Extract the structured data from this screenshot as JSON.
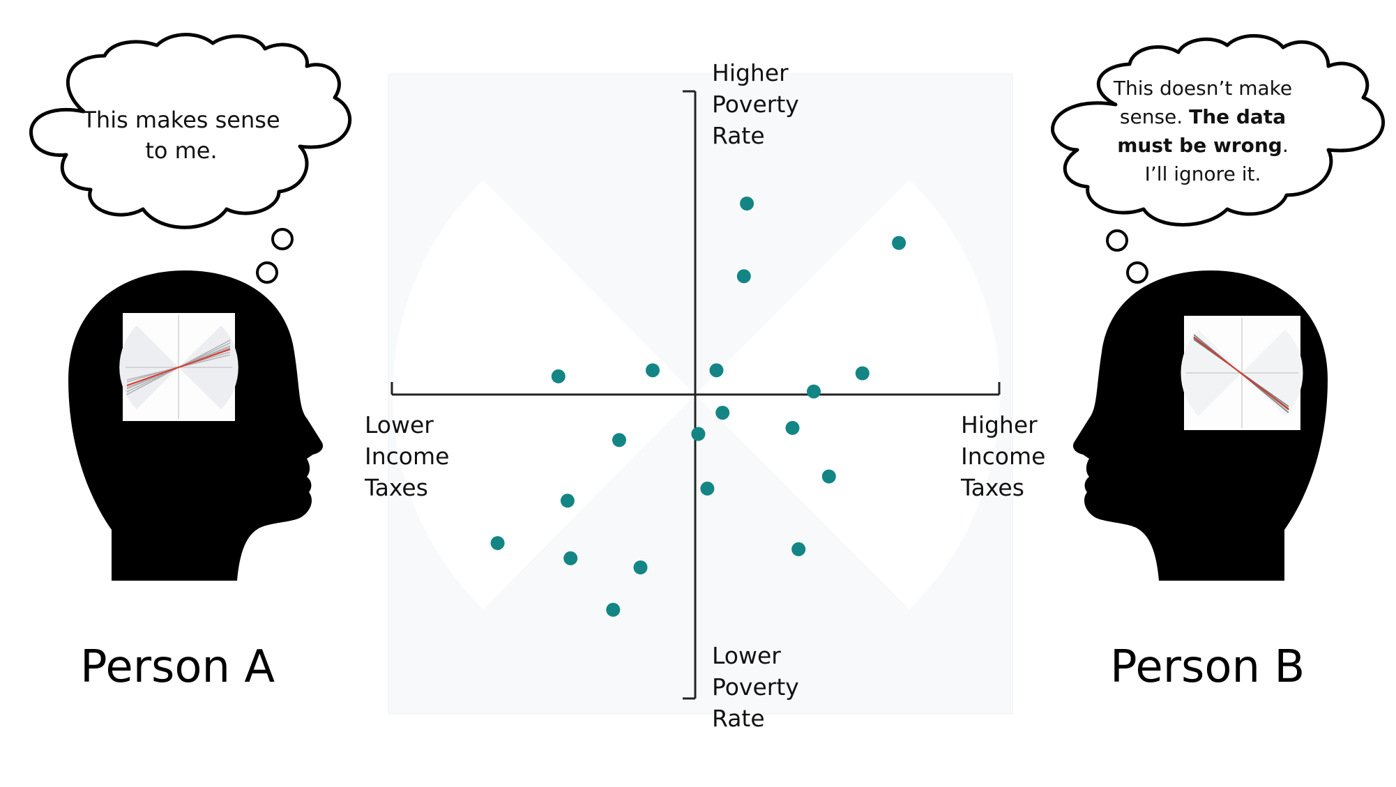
{
  "left": {
    "person_label": "Person A",
    "thought": [
      "This makes sense",
      "to me."
    ]
  },
  "right": {
    "person_label": "Person B",
    "thought_lines": [
      [
        "This doesn’t make",
        ""
      ],
      [
        "sense. ",
        "The data"
      ],
      [
        "",
        "must be wrong"
      ],
      [
        "I’ll ignore it.",
        ""
      ]
    ],
    "thought_end": "."
  },
  "axes": {
    "top": [
      "Higher",
      "Poverty",
      "Rate"
    ],
    "bottom": [
      "Lower",
      "Poverty",
      "Rate"
    ],
    "left": [
      "Lower",
      "Income",
      "Taxes"
    ],
    "right": [
      "Higher",
      "Income",
      "Taxes"
    ]
  },
  "chart_data": {
    "type": "scatter",
    "color": "#138585",
    "xlim": [
      -1,
      1
    ],
    "ylim": [
      -1,
      1
    ],
    "points": [
      {
        "x": 0.17,
        "y": 0.63
      },
      {
        "x": 0.67,
        "y": 0.5
      },
      {
        "x": 0.16,
        "y": 0.39
      },
      {
        "x": -0.45,
        "y": 0.06
      },
      {
        "x": -0.14,
        "y": 0.08
      },
      {
        "x": 0.07,
        "y": 0.08
      },
      {
        "x": 0.55,
        "y": 0.07
      },
      {
        "x": 0.39,
        "y": 0.01
      },
      {
        "x": 0.09,
        "y": -0.06
      },
      {
        "x": 0.32,
        "y": -0.11
      },
      {
        "x": 0.01,
        "y": -0.13
      },
      {
        "x": -0.25,
        "y": -0.15
      },
      {
        "x": 0.44,
        "y": -0.27
      },
      {
        "x": 0.04,
        "y": -0.31
      },
      {
        "x": -0.42,
        "y": -0.35
      },
      {
        "x": -0.65,
        "y": -0.49
      },
      {
        "x": -0.41,
        "y": -0.54
      },
      {
        "x": -0.18,
        "y": -0.57
      },
      {
        "x": 0.34,
        "y": -0.51
      },
      {
        "x": -0.27,
        "y": -0.71
      }
    ]
  }
}
